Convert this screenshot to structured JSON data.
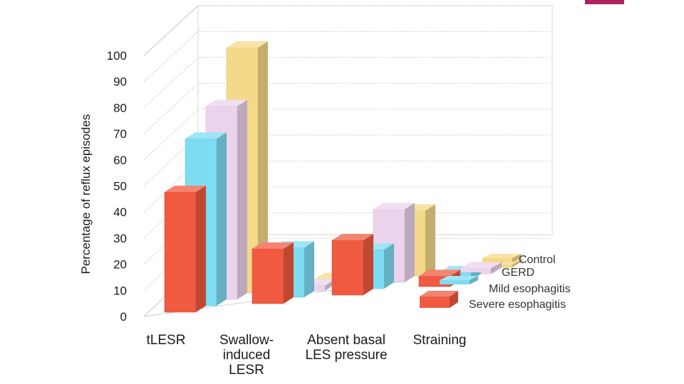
{
  "accent_color": "#b0215f",
  "chart_data": {
    "type": "bar",
    "title": "",
    "xlabel": "",
    "ylabel": "Percentage of reflux episodes",
    "ylim": [
      0,
      100
    ],
    "yticks": [
      "0",
      "10",
      "20",
      "30",
      "40",
      "50",
      "60",
      "70",
      "80",
      "90",
      "100"
    ],
    "grid": true,
    "legend_position": "bottom-right",
    "categories": [
      [
        "tLESR"
      ],
      [
        "Swallow-",
        "induced",
        "LESR"
      ],
      [
        "Absent basal",
        "LES pressure"
      ],
      [
        "Straining"
      ]
    ],
    "series": [
      {
        "name": "Control",
        "color": "#f5d98a",
        "values": [
          94,
          2,
          25,
          1
        ]
      },
      {
        "name": "GERD",
        "color": "#ecd3ec",
        "values": [
          74,
          2,
          28,
          2
        ]
      },
      {
        "name": "Mild esophagitis",
        "color": "#7edcf2",
        "values": [
          64,
          19,
          15,
          3
        ]
      },
      {
        "name": "Severe esophagitis",
        "color": "#f05a40",
        "values": [
          46,
          21,
          21,
          4
        ]
      }
    ]
  }
}
